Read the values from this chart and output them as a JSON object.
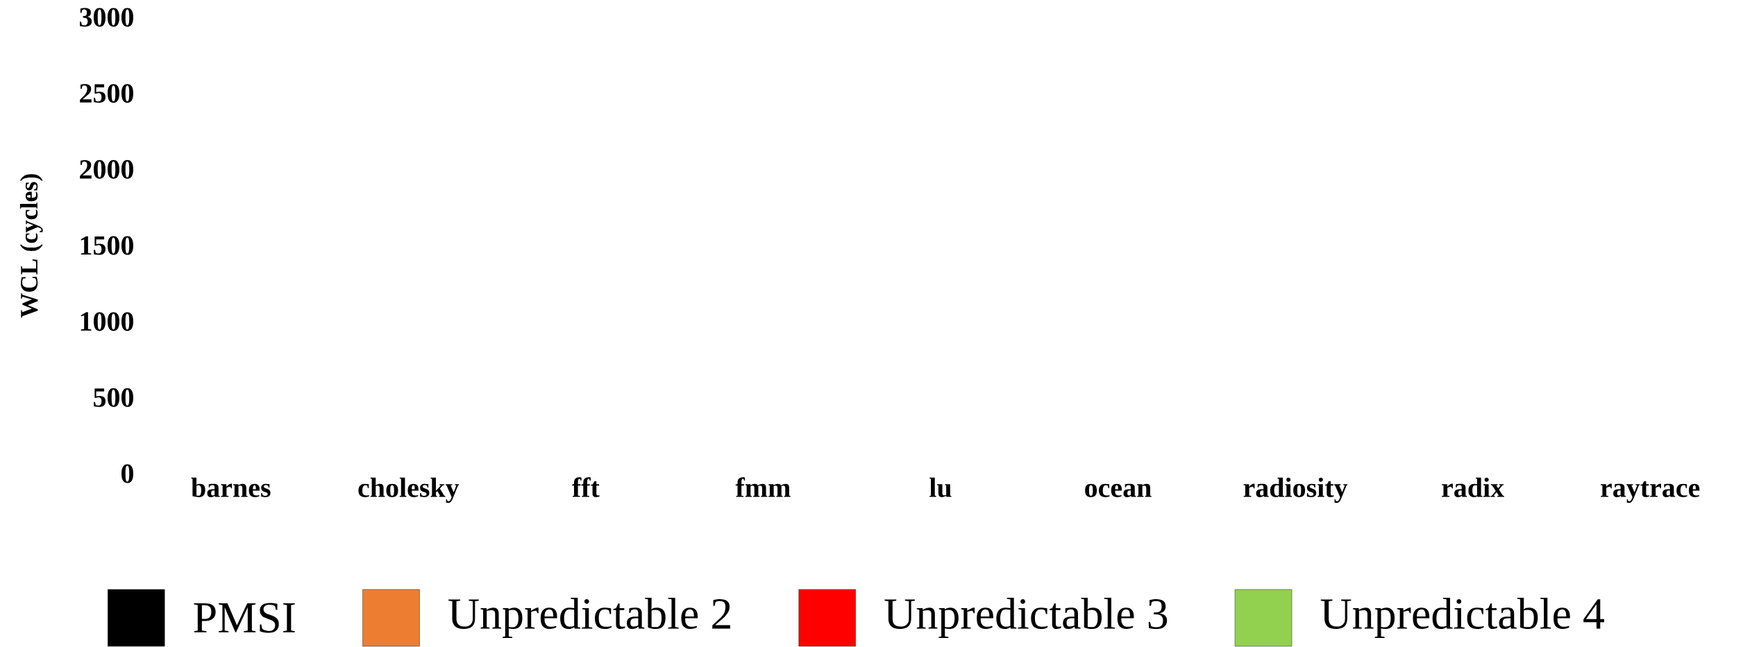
{
  "chart_data": {
    "type": "bar",
    "ylabel": "WCL (cycles)",
    "categories": [
      "barnes",
      "cholesky",
      "fft",
      "fmm",
      "lu",
      "ocean",
      "radiosity",
      "radix",
      "raytrace"
    ],
    "ylim": [
      0,
      3000
    ],
    "yticks": [
      0,
      500,
      1000,
      1500,
      2000,
      2500,
      3000
    ],
    "series": [
      {
        "name": "PMSI",
        "color": "#000000",
        "values": [
          null,
          null,
          null,
          null,
          null,
          null,
          null,
          null,
          null
        ]
      },
      {
        "name": "Unpredictable 2",
        "color": "#ed7d31",
        "values": [
          null,
          null,
          null,
          null,
          null,
          null,
          null,
          null,
          null
        ]
      },
      {
        "name": "Unpredictable 3",
        "color": "#ff0000",
        "values": [
          null,
          null,
          null,
          null,
          null,
          null,
          null,
          null,
          null
        ]
      },
      {
        "name": "Unpredictable 4",
        "color": "#92d050",
        "values": [
          null,
          null,
          null,
          null,
          null,
          null,
          null,
          null,
          null
        ]
      }
    ],
    "legend": "bottom"
  }
}
